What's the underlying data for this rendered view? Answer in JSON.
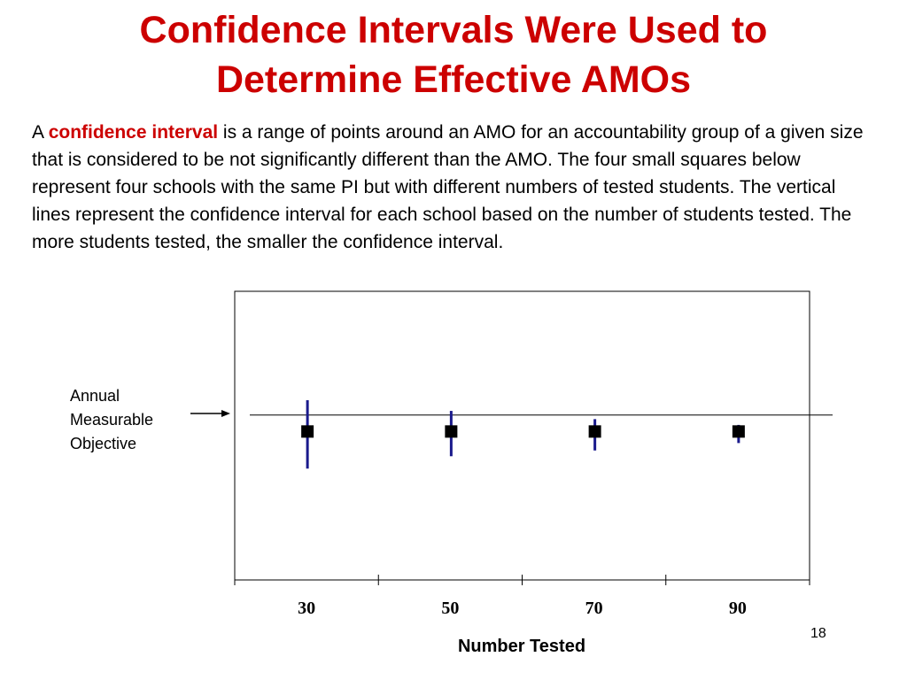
{
  "slide": {
    "title_line1": "Confidence Intervals Were Used to",
    "title_line2": "Determine Effective AMOs",
    "body_prefix": "A ",
    "body_highlight": "confidence interval",
    "body_rest": " is a range of points around an AMO for an accountability group of a given size that is considered to be not significantly different than the AMO. The four small squares below represent four schools with the same PI but with different numbers of tested students.  The vertical lines represent the confidence interval for each school based on the number of students tested.  The more students tested, the smaller the confidence interval.",
    "annotation_line1": "Annual",
    "annotation_line2": "Measurable",
    "annotation_line3": "Objective",
    "slide_number": "18"
  },
  "colors": {
    "title": "#cc0000",
    "highlight": "#cc0000",
    "interval_line": "#1a1a8c",
    "marker": "#000000"
  },
  "chart_data": {
    "type": "scatter",
    "title": "",
    "xlabel": "Number Tested",
    "ylabel": "",
    "categories": [
      "30",
      "50",
      "70",
      "90"
    ],
    "reference_line": {
      "label": "Annual Measurable Objective",
      "value": 0
    },
    "ylim": [
      -2,
      1.5
    ],
    "series": [
      {
        "points": [
          {
            "x": "30",
            "y": -0.2,
            "ci_low": -0.65,
            "ci_high": 0.18
          },
          {
            "x": "50",
            "y": -0.2,
            "ci_low": -0.5,
            "ci_high": 0.05
          },
          {
            "x": "70",
            "y": -0.2,
            "ci_low": -0.43,
            "ci_high": -0.05
          },
          {
            "x": "90",
            "y": -0.2,
            "ci_low": -0.34,
            "ci_high": -0.12
          }
        ]
      }
    ],
    "grid": false,
    "legend": "none"
  }
}
